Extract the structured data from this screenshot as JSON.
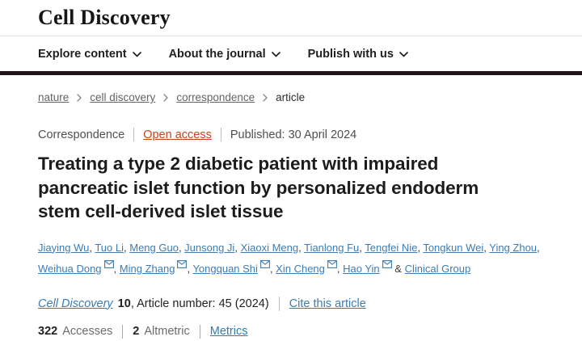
{
  "header": {
    "logo": "Cell Discovery"
  },
  "nav": {
    "items": [
      {
        "label": "Explore content"
      },
      {
        "label": "About the journal"
      },
      {
        "label": "Publish with us"
      }
    ]
  },
  "breadcrumb": {
    "items": [
      "nature",
      "cell discovery",
      "correspondence",
      "article"
    ]
  },
  "article": {
    "type": "Correspondence",
    "access_label": "Open access",
    "published": "Published: 30 April 2024",
    "title": "Treating a type 2 diabetic patient with impaired pancreatic islet function by personalized endoderm stem cell-derived islet tissue",
    "authors": [
      {
        "name": "Jiaying Wu",
        "email": false
      },
      {
        "name": "Tuo Li",
        "email": false
      },
      {
        "name": "Meng Guo",
        "email": false
      },
      {
        "name": "Junsong Ji",
        "email": false
      },
      {
        "name": "Xiaoxi Meng",
        "email": false
      },
      {
        "name": "Tianlong Fu",
        "email": false
      },
      {
        "name": "Tengfei Nie",
        "email": false
      },
      {
        "name": "Tongkun Wei",
        "email": false
      },
      {
        "name": "Ying Zhou",
        "email": false
      },
      {
        "name": "Weihua Dong",
        "email": true
      },
      {
        "name": "Ming Zhang",
        "email": true
      },
      {
        "name": "Yongquan Shi",
        "email": true
      },
      {
        "name": "Xin Cheng",
        "email": true
      },
      {
        "name": "Hao Yin",
        "email": true
      }
    ],
    "group_author": "Clinical Group",
    "citation": {
      "journal": "Cell Discovery",
      "volume": "10",
      "rest": ", Article number: 45 (2024)",
      "cite_link": "Cite this article"
    },
    "metrics": {
      "accesses_value": "322",
      "accesses_label": "Accesses",
      "altmetric_value": "2",
      "altmetric_label": "Altmetric",
      "metrics_link": "Metrics"
    }
  },
  "colors": {
    "link_blue": "#3e7cb1",
    "open_access_orange": "#c6451a",
    "nav_rule_dark": "#221518"
  }
}
